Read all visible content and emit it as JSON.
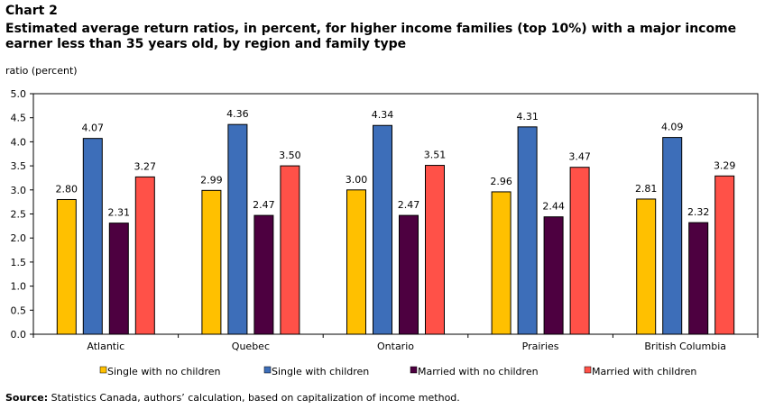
{
  "header": {
    "chart_number": "Chart 2",
    "title": "Estimated average return ratios, in percent, for higher income families (top 10%) with a major income earner less than 35 years old, by region and family type"
  },
  "footer": {
    "source_label": "Source:",
    "source_text": " Statistics Canada, authors’ calculation, based on capitalization of income method."
  },
  "chart_data": {
    "type": "bar",
    "title": "Estimated average return ratios, in percent, for higher income families (top 10%) with a major income earner less than 35 years old, by region and family type",
    "xlabel": "",
    "ylabel": "ratio (percent)",
    "ylim": [
      0,
      5
    ],
    "yticks": [
      "0.0",
      "0.5",
      "1.0",
      "1.5",
      "2.0",
      "2.5",
      "3.0",
      "3.5",
      "4.0",
      "4.5",
      "5.0"
    ],
    "grid": false,
    "legend_position": "bottom",
    "categories": [
      "Atlantic",
      "Quebec",
      "Ontario",
      "Prairies",
      "British Columbia"
    ],
    "series": [
      {
        "name": "Single with no children",
        "color": "#FFC000",
        "values": [
          2.8,
          2.99,
          3.0,
          2.96,
          2.81
        ],
        "labels": [
          "2.80",
          "2.99",
          "3.00",
          "2.96",
          "2.81"
        ]
      },
      {
        "name": "Single with children",
        "color": "#3D6EB9",
        "values": [
          4.07,
          4.36,
          4.34,
          4.31,
          4.09
        ],
        "labels": [
          "4.07",
          "4.36",
          "4.34",
          "4.31",
          "4.09"
        ]
      },
      {
        "name": "Married with no children",
        "color": "#4D0040",
        "values": [
          2.31,
          2.47,
          2.47,
          2.44,
          2.32
        ],
        "labels": [
          "2.31",
          "2.47",
          "2.47",
          "2.44",
          "2.32"
        ]
      },
      {
        "name": "Married with children",
        "color": "#FF5148",
        "values": [
          3.27,
          3.5,
          3.51,
          3.47,
          3.29
        ],
        "labels": [
          "3.27",
          "3.50",
          "3.51",
          "3.47",
          "3.29"
        ]
      }
    ]
  }
}
